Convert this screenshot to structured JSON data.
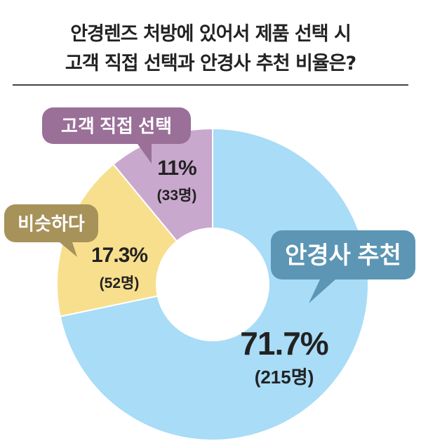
{
  "chart_data": {
    "type": "pie",
    "title_lines": [
      "안경렌즈 처방에 있어서 제품 선택 시",
      "고객 직접 선택과 안경사 추천 비율은?"
    ],
    "slices": [
      {
        "label": "안경사 추천",
        "value": 71.7,
        "pct_text": "71.7%",
        "count_text": "(215명)",
        "color": "#a8dcf7",
        "callout_color": "#5c96b4"
      },
      {
        "label": "비슷하다",
        "value": 17.3,
        "pct_text": "17.3%",
        "count_text": "(52명)",
        "color": "#f7df8d",
        "callout_color": "#a7925a"
      },
      {
        "label": "고객 직접 선택",
        "value": 11,
        "pct_text": "11%",
        "count_text": "(33명)",
        "color": "#c9a8ce",
        "callout_color": "#9a6f98"
      }
    ]
  }
}
